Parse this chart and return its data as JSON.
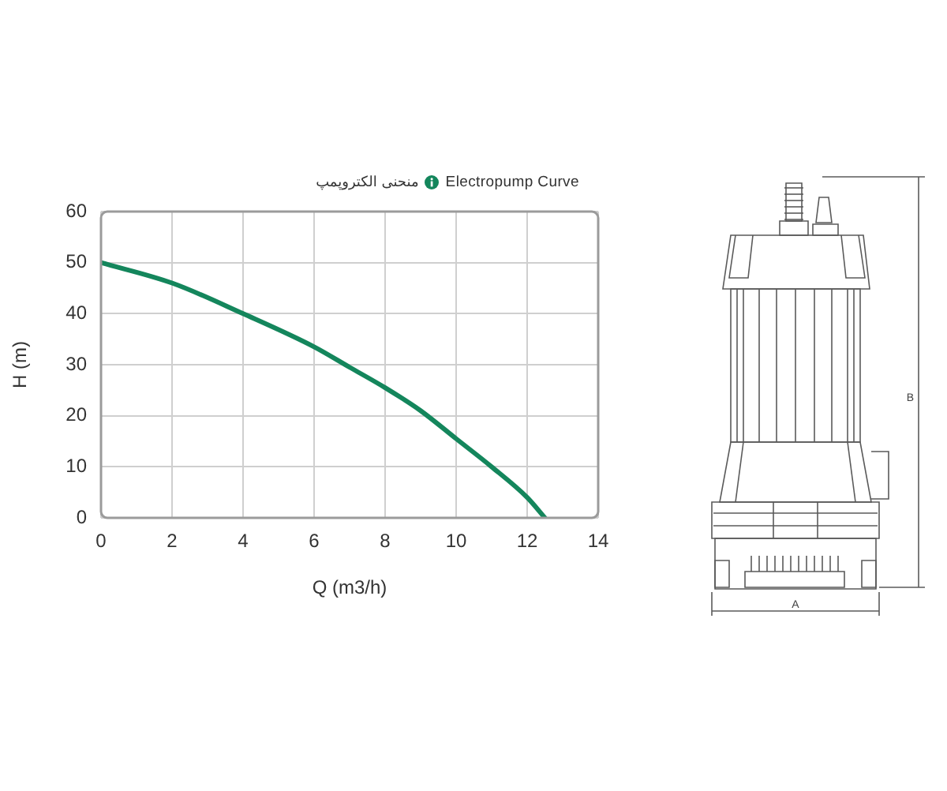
{
  "chart_data": {
    "type": "line",
    "title": "Electropump Curve",
    "subtitle": "منحنی الکتروپمپ",
    "xlabel": "Q (m3/h)",
    "ylabel": "H (m)",
    "annotations": [
      "A",
      "B"
    ],
    "x": [
      0,
      2,
      4,
      6,
      7,
      8,
      9,
      10,
      11,
      12,
      12.5
    ],
    "series": [
      {
        "color": "#14865c",
        "values": [
          50,
          46,
          40,
          33.5,
          29.5,
          25.5,
          21,
          15.5,
          10,
          4,
          0
        ]
      }
    ],
    "xlim": [
      0,
      14
    ],
    "xticks": [
      0,
      2,
      4,
      6,
      8,
      10,
      12,
      14
    ],
    "ylim": [
      0,
      60
    ],
    "yticks": [
      0,
      10,
      20,
      30,
      40,
      50,
      60
    ],
    "grid": true,
    "legend": false,
    "marker": "none",
    "line_style": "solid"
  }
}
